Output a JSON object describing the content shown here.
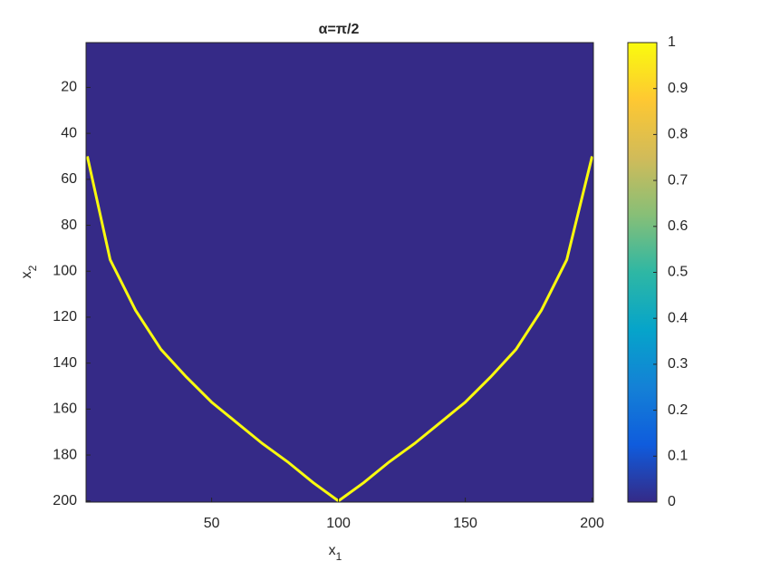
{
  "chart_data": {
    "type": "heatmap",
    "title": "α=π/2",
    "xlabel": {
      "base": "x",
      "sub": "1"
    },
    "ylabel": {
      "base": "x",
      "sub": "2"
    },
    "xlim": [
      0.5,
      200.5
    ],
    "ylim": [
      0.5,
      200.5
    ],
    "y_reversed": true,
    "xticks": [
      50,
      100,
      150,
      200
    ],
    "yticks": [
      20,
      40,
      60,
      80,
      100,
      120,
      140,
      160,
      180,
      200
    ],
    "background_value": 0,
    "curve_value": 1,
    "x": [
      1,
      10,
      20,
      30,
      40,
      50,
      60,
      70,
      80,
      90,
      100,
      110,
      120,
      130,
      140,
      150,
      160,
      170,
      180,
      190,
      200
    ],
    "values": [
      50,
      95,
      117,
      134,
      146,
      157,
      166,
      175,
      183,
      192,
      200,
      192,
      183,
      175,
      166,
      157,
      146,
      134,
      117,
      95,
      50
    ],
    "clim": [
      0,
      1
    ],
    "cticks": [
      0,
      0.1,
      0.2,
      0.3,
      0.4,
      0.5,
      0.6,
      0.7,
      0.8,
      0.9,
      1
    ],
    "colormap": [
      "#352a87",
      "#0f5cdd",
      "#1481d6",
      "#06a4ca",
      "#2eb7a4",
      "#87bf77",
      "#d1bb59",
      "#fec832",
      "#f9fb0e"
    ]
  }
}
